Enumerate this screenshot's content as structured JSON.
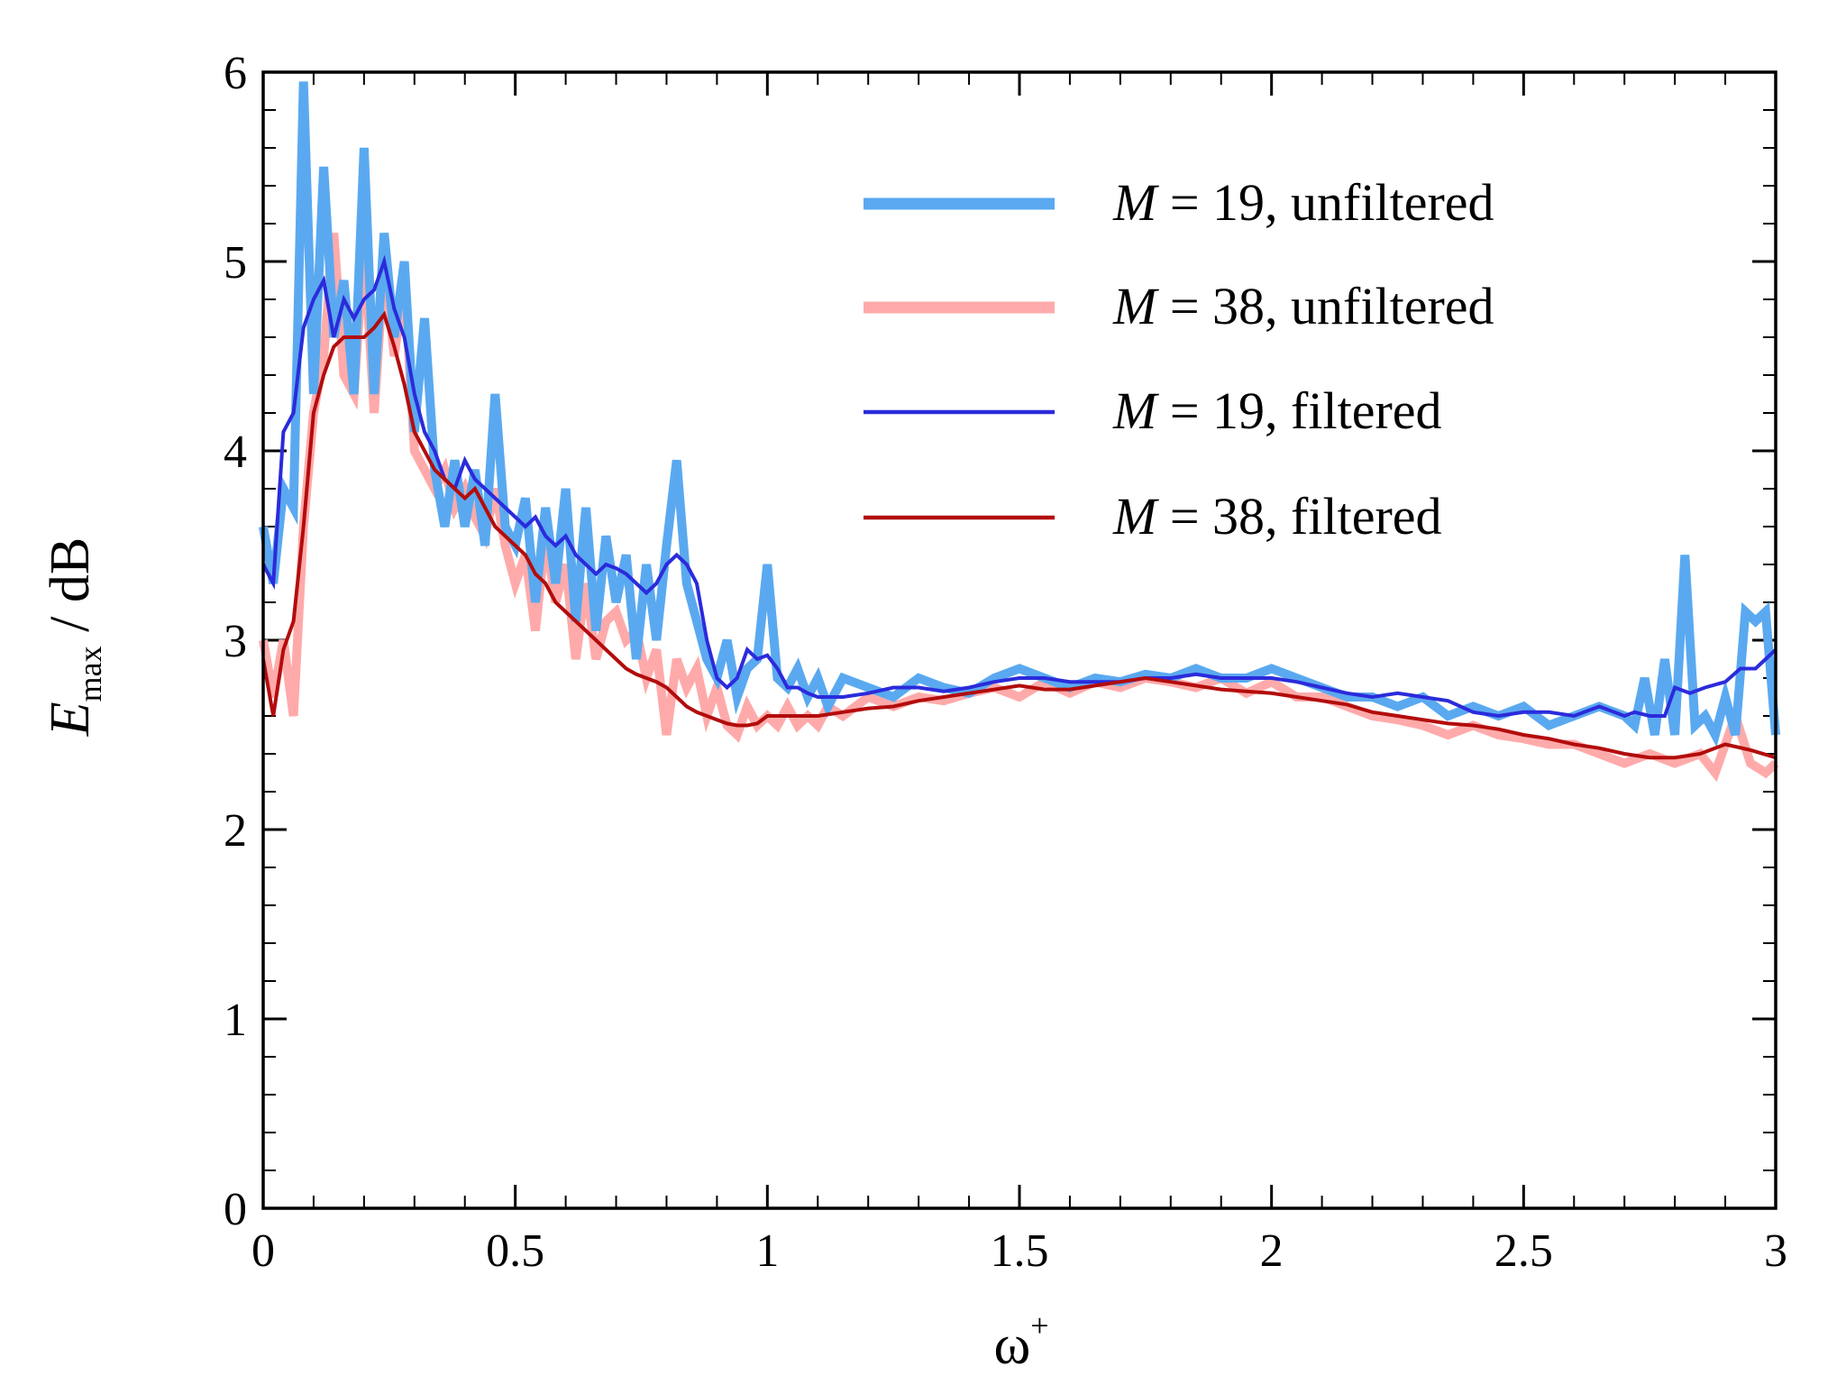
{
  "chart_data": {
    "type": "line",
    "title": "",
    "xlabel": "ω⁺",
    "xlabel_main": "ω",
    "xlabel_sup": "+",
    "ylabel": "E_max / dB",
    "ylabel_main": "E",
    "ylabel_sub": "max",
    "ylabel_unit": " / dB",
    "xlim": [
      0,
      3
    ],
    "ylim": [
      0,
      6
    ],
    "x_ticks": [
      0,
      0.5,
      1,
      1.5,
      2,
      2.5,
      3
    ],
    "x_tick_labels": [
      "0",
      "0.5",
      "1",
      "1.5",
      "2",
      "2.5",
      "3"
    ],
    "y_ticks": [
      0,
      1,
      2,
      3,
      4,
      5,
      6
    ],
    "y_tick_labels": [
      "0",
      "1",
      "2",
      "3",
      "4",
      "5",
      "6"
    ],
    "legend_position": "top-right",
    "series": [
      {
        "name": "M = 19, unfiltered",
        "label_var": "M",
        "label_rest": " = 19, unfiltered",
        "color": "#5aa9f0",
        "x": [
          0.0,
          0.02,
          0.04,
          0.06,
          0.08,
          0.1,
          0.12,
          0.14,
          0.16,
          0.18,
          0.2,
          0.22,
          0.24,
          0.26,
          0.28,
          0.3,
          0.32,
          0.34,
          0.36,
          0.38,
          0.4,
          0.42,
          0.44,
          0.46,
          0.48,
          0.5,
          0.52,
          0.54,
          0.56,
          0.58,
          0.6,
          0.62,
          0.64,
          0.66,
          0.68,
          0.7,
          0.72,
          0.74,
          0.76,
          0.78,
          0.8,
          0.82,
          0.84,
          0.86,
          0.88,
          0.9,
          0.92,
          0.94,
          0.96,
          0.98,
          1.0,
          1.02,
          1.04,
          1.06,
          1.08,
          1.1,
          1.12,
          1.15,
          1.2,
          1.25,
          1.3,
          1.35,
          1.4,
          1.45,
          1.5,
          1.55,
          1.6,
          1.65,
          1.7,
          1.75,
          1.8,
          1.85,
          1.9,
          1.95,
          2.0,
          2.05,
          2.1,
          2.15,
          2.2,
          2.25,
          2.3,
          2.35,
          2.4,
          2.45,
          2.5,
          2.55,
          2.6,
          2.65,
          2.7,
          2.72,
          2.74,
          2.76,
          2.78,
          2.8,
          2.82,
          2.84,
          2.86,
          2.88,
          2.9,
          2.92,
          2.94,
          2.96,
          2.98,
          3.0
        ],
        "values": [
          3.6,
          3.3,
          3.8,
          3.7,
          5.95,
          4.3,
          5.5,
          4.6,
          4.9,
          4.3,
          5.6,
          4.3,
          5.15,
          4.6,
          5.0,
          4.1,
          4.7,
          3.9,
          3.6,
          3.95,
          3.6,
          3.9,
          3.5,
          4.3,
          3.6,
          3.5,
          3.75,
          3.2,
          3.7,
          3.3,
          3.8,
          3.1,
          3.7,
          3.05,
          3.55,
          3.2,
          3.45,
          2.9,
          3.4,
          3.0,
          3.5,
          3.95,
          3.3,
          3.1,
          2.9,
          2.8,
          3.0,
          2.7,
          2.85,
          2.9,
          3.4,
          2.8,
          2.75,
          2.85,
          2.7,
          2.8,
          2.65,
          2.8,
          2.75,
          2.7,
          2.8,
          2.75,
          2.72,
          2.8,
          2.85,
          2.8,
          2.75,
          2.8,
          2.78,
          2.82,
          2.8,
          2.85,
          2.8,
          2.8,
          2.85,
          2.8,
          2.75,
          2.7,
          2.7,
          2.65,
          2.7,
          2.6,
          2.65,
          2.6,
          2.65,
          2.55,
          2.6,
          2.65,
          2.6,
          2.55,
          2.8,
          2.5,
          2.9,
          2.5,
          3.45,
          2.55,
          2.6,
          2.5,
          2.7,
          2.5,
          3.15,
          3.1,
          3.15,
          2.5
        ]
      },
      {
        "name": "M = 38, unfiltered",
        "label_var": "M",
        "label_rest": " = 38, unfiltered",
        "color": "#ffaaaa",
        "x": [
          0.0,
          0.02,
          0.04,
          0.06,
          0.08,
          0.1,
          0.12,
          0.14,
          0.16,
          0.18,
          0.2,
          0.22,
          0.24,
          0.26,
          0.28,
          0.3,
          0.32,
          0.34,
          0.36,
          0.38,
          0.4,
          0.42,
          0.44,
          0.46,
          0.48,
          0.5,
          0.52,
          0.54,
          0.56,
          0.58,
          0.6,
          0.62,
          0.64,
          0.66,
          0.68,
          0.7,
          0.72,
          0.74,
          0.76,
          0.78,
          0.8,
          0.82,
          0.84,
          0.86,
          0.88,
          0.9,
          0.92,
          0.94,
          0.96,
          0.98,
          1.0,
          1.02,
          1.04,
          1.06,
          1.08,
          1.1,
          1.12,
          1.15,
          1.2,
          1.25,
          1.3,
          1.35,
          1.4,
          1.45,
          1.5,
          1.55,
          1.6,
          1.65,
          1.7,
          1.75,
          1.8,
          1.85,
          1.9,
          1.95,
          2.0,
          2.05,
          2.1,
          2.15,
          2.2,
          2.25,
          2.3,
          2.35,
          2.4,
          2.45,
          2.5,
          2.55,
          2.6,
          2.65,
          2.7,
          2.75,
          2.8,
          2.85,
          2.88,
          2.9,
          2.92,
          2.95,
          2.98,
          3.0
        ],
        "values": [
          3.0,
          2.7,
          3.0,
          2.6,
          3.6,
          4.2,
          4.5,
          5.15,
          4.4,
          4.3,
          5.1,
          4.2,
          5.0,
          4.5,
          4.9,
          4.0,
          3.9,
          3.8,
          3.9,
          3.7,
          3.8,
          3.65,
          3.55,
          3.8,
          3.5,
          3.3,
          3.45,
          3.05,
          3.55,
          3.2,
          3.4,
          2.9,
          3.3,
          2.9,
          3.1,
          3.15,
          3.0,
          3.05,
          2.8,
          2.95,
          2.5,
          2.9,
          2.75,
          2.85,
          2.6,
          2.75,
          2.55,
          2.5,
          2.65,
          2.55,
          2.6,
          2.55,
          2.65,
          2.55,
          2.6,
          2.55,
          2.65,
          2.6,
          2.7,
          2.65,
          2.7,
          2.68,
          2.72,
          2.75,
          2.7,
          2.78,
          2.72,
          2.78,
          2.75,
          2.8,
          2.78,
          2.75,
          2.8,
          2.72,
          2.78,
          2.7,
          2.7,
          2.65,
          2.6,
          2.58,
          2.55,
          2.5,
          2.55,
          2.5,
          2.48,
          2.45,
          2.45,
          2.4,
          2.35,
          2.4,
          2.35,
          2.4,
          2.3,
          2.45,
          2.6,
          2.35,
          2.3,
          2.35
        ]
      },
      {
        "name": "M = 19, filtered",
        "label_var": "M",
        "label_rest": " = 19, filtered",
        "color": "#2b2bdb",
        "x": [
          0.0,
          0.02,
          0.04,
          0.06,
          0.08,
          0.1,
          0.12,
          0.14,
          0.16,
          0.18,
          0.2,
          0.22,
          0.24,
          0.26,
          0.28,
          0.3,
          0.32,
          0.34,
          0.36,
          0.38,
          0.4,
          0.42,
          0.44,
          0.46,
          0.48,
          0.5,
          0.52,
          0.54,
          0.56,
          0.58,
          0.6,
          0.62,
          0.64,
          0.66,
          0.68,
          0.7,
          0.72,
          0.74,
          0.76,
          0.78,
          0.8,
          0.82,
          0.84,
          0.86,
          0.88,
          0.9,
          0.92,
          0.94,
          0.96,
          0.98,
          1.0,
          1.02,
          1.04,
          1.06,
          1.08,
          1.1,
          1.15,
          1.2,
          1.25,
          1.3,
          1.35,
          1.4,
          1.45,
          1.5,
          1.55,
          1.6,
          1.65,
          1.7,
          1.75,
          1.8,
          1.85,
          1.9,
          1.95,
          2.0,
          2.05,
          2.1,
          2.15,
          2.2,
          2.25,
          2.3,
          2.35,
          2.4,
          2.45,
          2.5,
          2.55,
          2.6,
          2.65,
          2.7,
          2.72,
          2.75,
          2.78,
          2.8,
          2.83,
          2.86,
          2.9,
          2.93,
          2.96,
          2.98,
          3.0
        ],
        "values": [
          3.4,
          3.3,
          4.1,
          4.2,
          4.65,
          4.8,
          4.9,
          4.6,
          4.8,
          4.7,
          4.8,
          4.85,
          5.0,
          4.75,
          4.6,
          4.3,
          4.1,
          4.0,
          3.85,
          3.8,
          3.95,
          3.85,
          3.8,
          3.75,
          3.7,
          3.65,
          3.6,
          3.65,
          3.55,
          3.5,
          3.55,
          3.45,
          3.4,
          3.35,
          3.4,
          3.38,
          3.35,
          3.3,
          3.25,
          3.3,
          3.4,
          3.45,
          3.4,
          3.3,
          3.0,
          2.8,
          2.75,
          2.8,
          2.95,
          2.9,
          2.92,
          2.85,
          2.75,
          2.75,
          2.72,
          2.7,
          2.7,
          2.72,
          2.75,
          2.75,
          2.73,
          2.75,
          2.78,
          2.8,
          2.8,
          2.78,
          2.78,
          2.78,
          2.8,
          2.8,
          2.82,
          2.8,
          2.8,
          2.8,
          2.78,
          2.75,
          2.72,
          2.7,
          2.72,
          2.7,
          2.68,
          2.62,
          2.6,
          2.62,
          2.62,
          2.6,
          2.65,
          2.6,
          2.62,
          2.6,
          2.6,
          2.75,
          2.72,
          2.75,
          2.78,
          2.85,
          2.85,
          2.9,
          2.95
        ]
      },
      {
        "name": "M = 38, filtered",
        "label_var": "M",
        "label_rest": " = 38, filtered",
        "color": "#b30c0c",
        "x": [
          0.0,
          0.02,
          0.04,
          0.06,
          0.08,
          0.1,
          0.12,
          0.14,
          0.16,
          0.18,
          0.2,
          0.22,
          0.24,
          0.26,
          0.28,
          0.3,
          0.32,
          0.34,
          0.36,
          0.38,
          0.4,
          0.42,
          0.44,
          0.46,
          0.48,
          0.5,
          0.52,
          0.54,
          0.56,
          0.58,
          0.6,
          0.62,
          0.64,
          0.66,
          0.68,
          0.7,
          0.72,
          0.74,
          0.76,
          0.78,
          0.8,
          0.82,
          0.84,
          0.86,
          0.88,
          0.9,
          0.92,
          0.94,
          0.96,
          0.98,
          1.0,
          1.05,
          1.1,
          1.15,
          1.2,
          1.25,
          1.3,
          1.35,
          1.4,
          1.45,
          1.5,
          1.55,
          1.6,
          1.65,
          1.7,
          1.75,
          1.8,
          1.85,
          1.9,
          1.95,
          2.0,
          2.05,
          2.1,
          2.15,
          2.2,
          2.25,
          2.3,
          2.35,
          2.4,
          2.45,
          2.5,
          2.55,
          2.6,
          2.65,
          2.7,
          2.75,
          2.8,
          2.85,
          2.9,
          2.95,
          3.0
        ],
        "values": [
          2.9,
          2.6,
          2.95,
          3.1,
          3.6,
          4.2,
          4.4,
          4.55,
          4.6,
          4.6,
          4.6,
          4.65,
          4.72,
          4.55,
          4.35,
          4.1,
          4.0,
          3.9,
          3.85,
          3.8,
          3.75,
          3.8,
          3.7,
          3.6,
          3.55,
          3.5,
          3.45,
          3.35,
          3.3,
          3.2,
          3.15,
          3.1,
          3.05,
          3.0,
          2.95,
          2.9,
          2.85,
          2.82,
          2.8,
          2.78,
          2.75,
          2.7,
          2.65,
          2.62,
          2.6,
          2.58,
          2.56,
          2.55,
          2.55,
          2.56,
          2.6,
          2.6,
          2.6,
          2.62,
          2.64,
          2.65,
          2.68,
          2.7,
          2.72,
          2.74,
          2.76,
          2.74,
          2.74,
          2.76,
          2.78,
          2.8,
          2.78,
          2.76,
          2.74,
          2.73,
          2.72,
          2.7,
          2.68,
          2.66,
          2.62,
          2.6,
          2.58,
          2.56,
          2.55,
          2.53,
          2.5,
          2.48,
          2.45,
          2.43,
          2.4,
          2.38,
          2.38,
          2.4,
          2.45,
          2.42,
          2.38
        ]
      }
    ]
  }
}
